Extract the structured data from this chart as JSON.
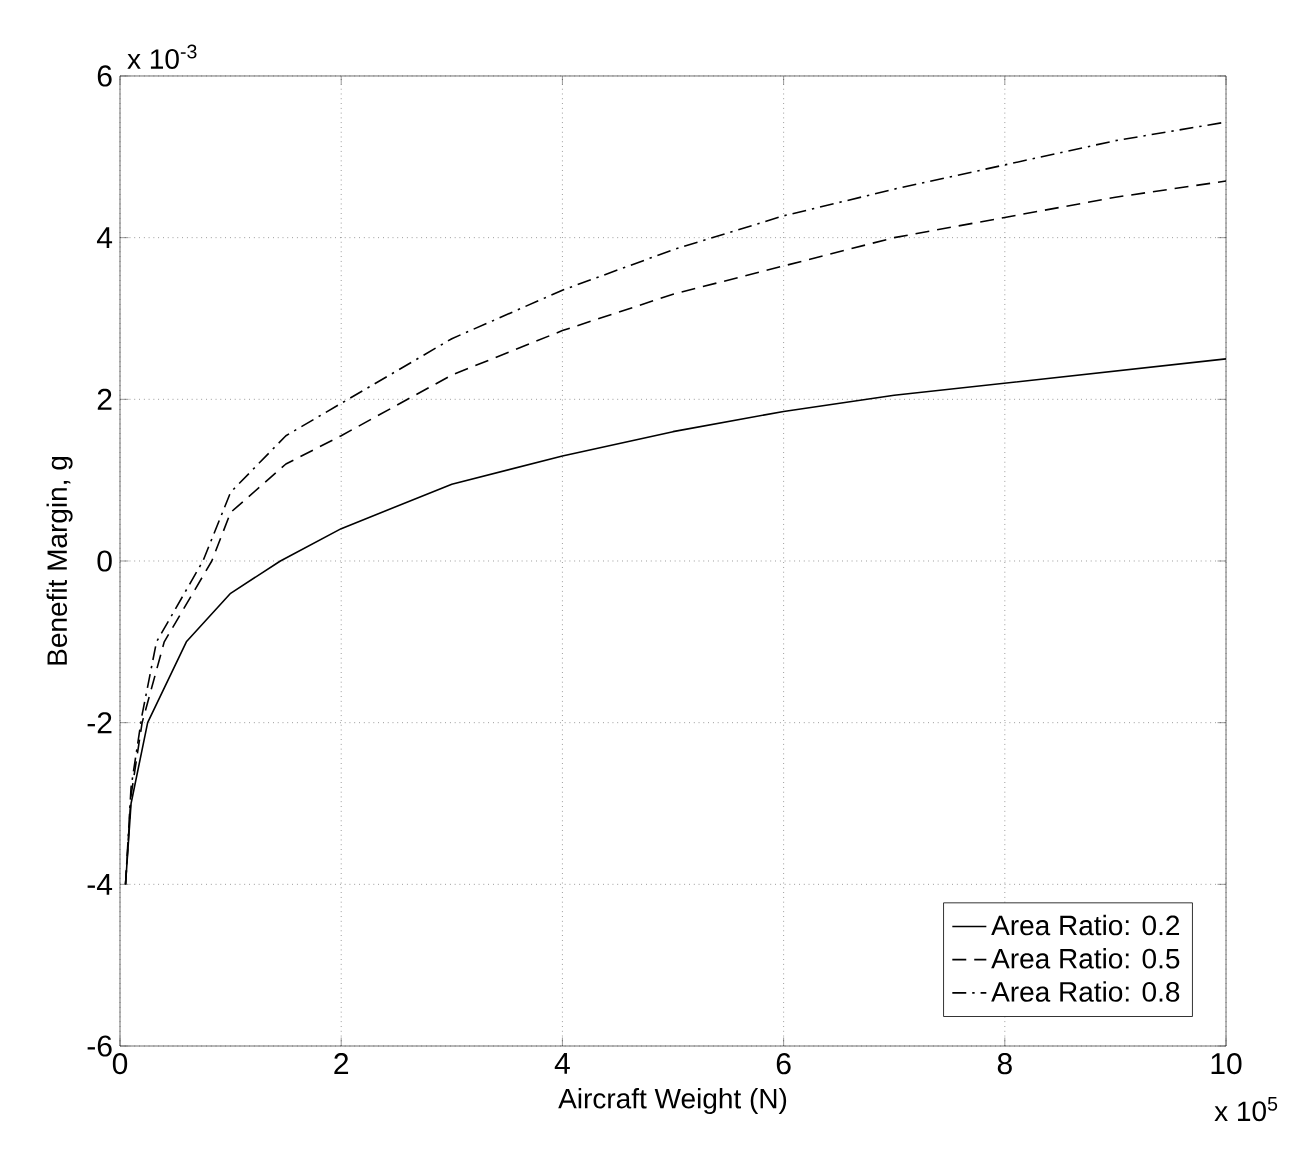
{
  "chart_data": {
    "type": "line",
    "xlabel": "Aircraft Weight (N)",
    "ylabel": "Benefit Margin, g",
    "annotations": [
      "x 10$^{-3}$",
      "x 10$^{5}$"
    ],
    "xlim": [
      0,
      10
    ],
    "xticks": [
      0,
      2,
      4,
      6,
      8,
      10
    ],
    "ylim": [
      -6,
      6
    ],
    "yticks": [
      -6,
      -4,
      -2,
      0,
      2,
      4,
      6
    ],
    "grid": true,
    "legend": "bottom right",
    "series": [
      {
        "name": "Area Ratio: 0.2",
        "color": "#000000",
        "line_style": "solid",
        "x": [
          0.05,
          0.1,
          0.25,
          0.6,
          1,
          1.45,
          2,
          3,
          4,
          5,
          6,
          7,
          8,
          9,
          10
        ],
        "values": [
          -4.0,
          -3.0,
          -2.0,
          -1.0,
          -0.4,
          0.0,
          0.4,
          0.95,
          1.3,
          1.6,
          1.85,
          2.05,
          2.2,
          2.35,
          2.5
        ]
      },
      {
        "name": "Area Ratio: 0.5",
        "color": "#000000",
        "line_style": "dashed",
        "x": [
          0.05,
          0.1,
          0.2,
          0.4,
          0.83,
          1,
          1.5,
          2,
          3,
          4,
          5,
          6,
          7,
          8,
          9,
          10
        ],
        "values": [
          -4.0,
          -2.9,
          -2.0,
          -1.0,
          0.0,
          0.6,
          1.2,
          1.55,
          2.3,
          2.85,
          3.3,
          3.65,
          4.0,
          4.25,
          4.5,
          4.7
        ]
      },
      {
        "name": "Area Ratio: 0.8",
        "color": "#000000",
        "line_style": "dashdot",
        "x": [
          0.05,
          0.1,
          0.2,
          0.33,
          0.75,
          1,
          1.5,
          2,
          3,
          4,
          5,
          6,
          7,
          8,
          9,
          10
        ],
        "values": [
          -4.0,
          -2.8,
          -1.9,
          -1.0,
          0.0,
          0.85,
          1.55,
          1.95,
          2.75,
          3.35,
          3.85,
          4.27,
          4.6,
          4.9,
          5.2,
          5.43
        ]
      }
    ]
  }
}
